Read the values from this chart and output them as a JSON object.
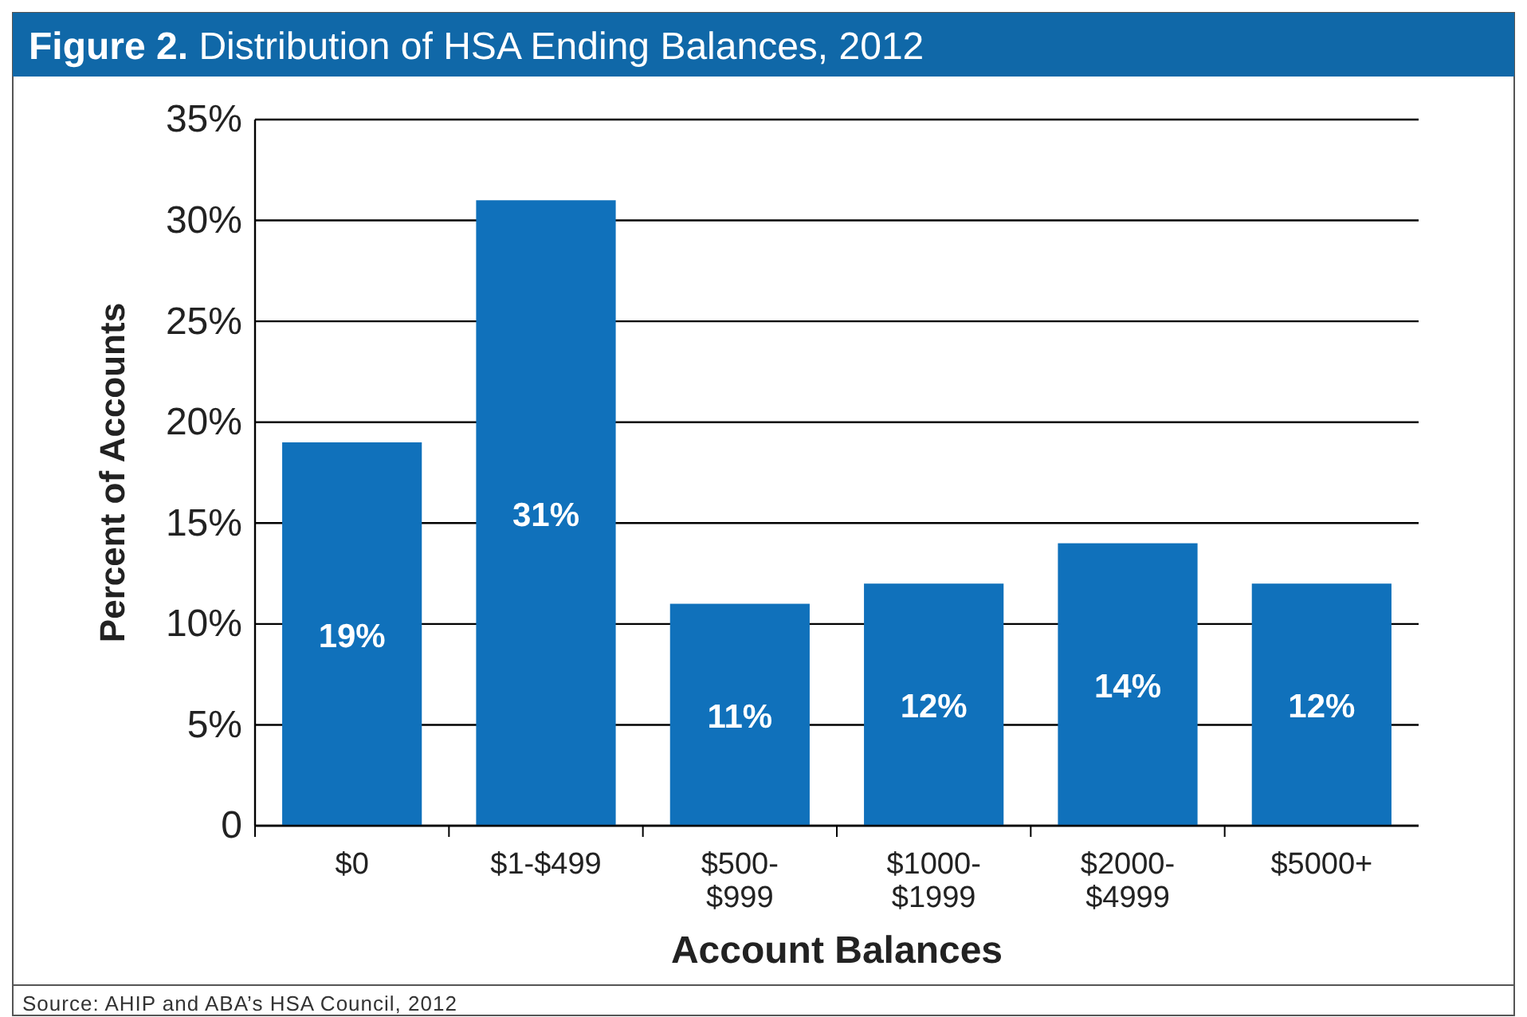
{
  "chart_data": {
    "type": "bar",
    "title": "Figure 2. Distribution of HSA Ending Balances, 2012",
    "xlabel": "Account Balances",
    "ylabel": "Percent of Accounts",
    "categories": [
      "$0",
      "$1-$499",
      "$500-$999",
      "$1000-$1999",
      "$2000-$4999",
      "$5000+"
    ],
    "values": [
      19,
      31,
      11,
      12,
      14,
      12
    ],
    "color": "#1071bb",
    "value_labels": [
      "19%",
      "31%",
      "11%",
      "12%",
      "14%",
      "12%"
    ],
    "ylim": [
      0,
      35
    ],
    "yticks": [
      {
        "value": 0,
        "label": "0"
      },
      {
        "value": 5,
        "label": "5%"
      },
      {
        "value": 10,
        "label": "10%"
      },
      {
        "value": 15,
        "label": "15%"
      },
      {
        "value": 20,
        "label": "20%"
      },
      {
        "value": 25,
        "label": "25%"
      },
      {
        "value": 30,
        "label": "30%"
      },
      {
        "value": 35,
        "label": "35%"
      }
    ],
    "grid": "y",
    "annotations": [
      "Source: AHIP and ABA’s HSA Council, 2012"
    ]
  }
}
